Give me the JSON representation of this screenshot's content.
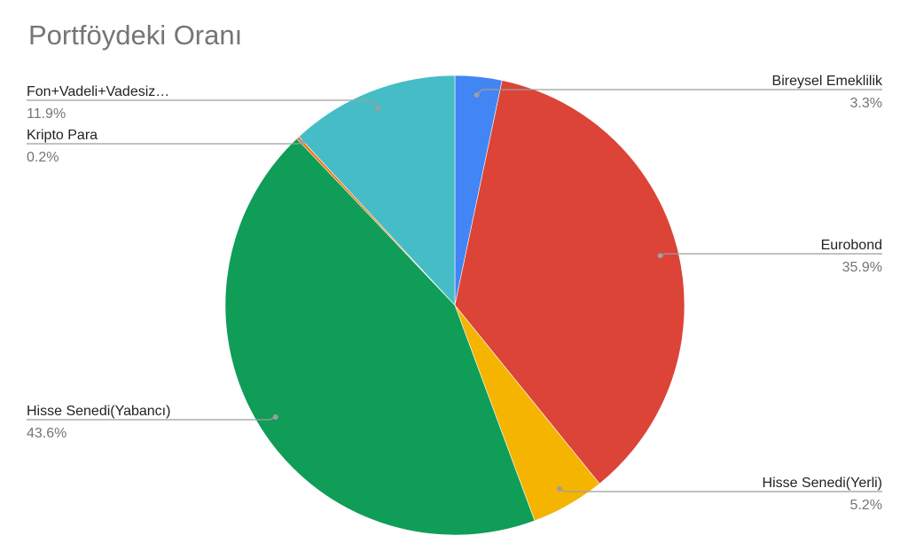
{
  "chart_data": {
    "type": "pie",
    "title": "Portföydeki Oranı",
    "series": [
      {
        "name": "Bireysel Emeklilik",
        "value": 3.3,
        "label": "3.3%",
        "color": "#4285f4"
      },
      {
        "name": "Eurobond",
        "value": 35.9,
        "label": "35.9%",
        "color": "#db4437"
      },
      {
        "name": "Hisse Senedi(Yerli)",
        "value": 5.2,
        "label": "5.2%",
        "color": "#f4b400"
      },
      {
        "name": "Hisse Senedi(Yabancı)",
        "value": 43.6,
        "label": "43.6%",
        "color": "#0f9d58"
      },
      {
        "name": "Kripto Para",
        "value": 0.2,
        "label": "0.2%",
        "color": "#ff6d01"
      },
      {
        "name": "Fon+Vadeli+Vadesiz…",
        "value": 11.9,
        "label": "11.9%",
        "color": "#46bdc6"
      }
    ],
    "legend": "leader-line labels"
  }
}
